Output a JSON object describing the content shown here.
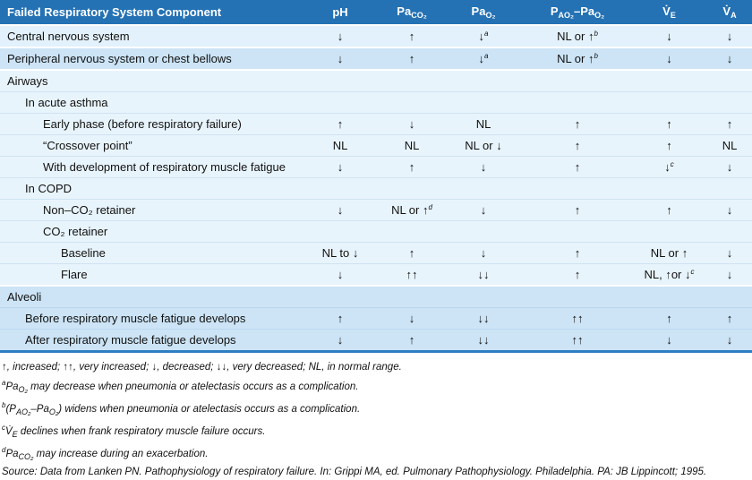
{
  "table": {
    "header": [
      [
        "Failed Respiratory System Component"
      ],
      [
        "pH"
      ],
      [
        "Pa",
        "CO₂"
      ],
      [
        "Pa",
        "O₂"
      ],
      [
        "P",
        "AO₂",
        "–Pa",
        "O₂"
      ],
      [
        "V̇",
        "E"
      ],
      [
        "V̇",
        "A"
      ]
    ],
    "groups": [
      {
        "rows": [
          {
            "label": "Central nervous system",
            "level": 0,
            "cells": [
              "↓",
              "↑",
              {
                "text": "↓",
                "note": "a"
              },
              {
                "text": "NL or ↑",
                "note": "b"
              },
              "↓",
              "↓"
            ]
          }
        ]
      },
      {
        "rows": [
          {
            "label": "Peripheral nervous system or chest bellows",
            "level": 0,
            "cells": [
              "↓",
              "↑",
              {
                "text": "↓",
                "note": "a"
              },
              {
                "text": "NL or ↑",
                "note": "b"
              },
              "↓",
              "↓"
            ]
          }
        ]
      },
      {
        "rows": [
          {
            "label": "Airways",
            "level": 0,
            "cells": []
          },
          {
            "label": "In acute asthma",
            "level": 1,
            "cells": []
          },
          {
            "label": "Early phase (before respiratory failure)",
            "level": 2,
            "cells": [
              "↑",
              "↓",
              "NL",
              "↑",
              "↑",
              "↑"
            ]
          },
          {
            "label": "“Crossover point”",
            "level": 2,
            "cells": [
              "NL",
              "NL",
              "NL or ↓",
              "↑",
              "↑",
              "NL"
            ]
          },
          {
            "label": "With development of respiratory muscle fatigue",
            "level": 2,
            "cells": [
              "↓",
              "↑",
              "↓",
              "↑",
              {
                "text": "↓",
                "note": "c"
              },
              "↓"
            ]
          },
          {
            "label": "In COPD",
            "level": 1,
            "cells": []
          },
          {
            "label": "Non–CO₂ retainer",
            "level": 2,
            "cells": [
              "↓",
              {
                "text": "NL or ↑",
                "note": "d"
              },
              "↓",
              "↑",
              "↑",
              "↓"
            ]
          },
          {
            "label": "CO₂ retainer",
            "level": 2,
            "cells": []
          },
          {
            "label": "Baseline",
            "level": 3,
            "cells": [
              "NL to ↓",
              "↑",
              "↓",
              "↑",
              "NL or ↑",
              "↓"
            ]
          },
          {
            "label": "Flare",
            "level": 3,
            "cells": [
              "↓",
              "↑↑",
              "↓↓",
              "↑",
              {
                "text": "NL, ↑or ↓",
                "note": "c"
              },
              "↓"
            ]
          }
        ]
      },
      {
        "rows": [
          {
            "label": "Alveoli",
            "level": 0,
            "cells": []
          },
          {
            "label": "Before respiratory muscle fatigue develops",
            "level": 1,
            "cells": [
              "↑",
              "↓",
              "↓↓",
              "↑↑",
              "↑",
              "↑"
            ]
          },
          {
            "label": "After respiratory muscle fatigue develops",
            "level": 1,
            "cells": [
              "↓",
              "↑",
              "↓↓",
              "↑↑",
              "↓",
              "↓"
            ]
          }
        ]
      }
    ],
    "footnotes": [
      {
        "parts": [
          "↑, increased; ↑↑, very increased; ↓, decreased; ↓↓, very decreased; NL, in normal range."
        ]
      },
      {
        "mark": "a",
        "parts": [
          "Pa",
          "O₂",
          " may decrease when pneumonia or atelectasis occurs as a complication."
        ]
      },
      {
        "mark": "b",
        "parts": [
          "(P",
          "AO₂",
          "–Pa",
          "O₂",
          ") widens when pneumonia or atelectasis occurs as a complication."
        ]
      },
      {
        "mark": "c",
        "parts": [
          "V̇",
          "E",
          " declines when frank respiratory muscle failure occurs."
        ]
      },
      {
        "mark": "d",
        "parts": [
          "Pa",
          "CO₂",
          " may increase during an exacerbation."
        ]
      },
      {
        "parts": [
          "Source: Data from Lanken PN. Pathophysiology of respiratory failure. In: Grippi MA, ed. Pulmonary Pathophysiology. Philadelphia. PA: JB Lippincott; 1995."
        ]
      }
    ]
  }
}
